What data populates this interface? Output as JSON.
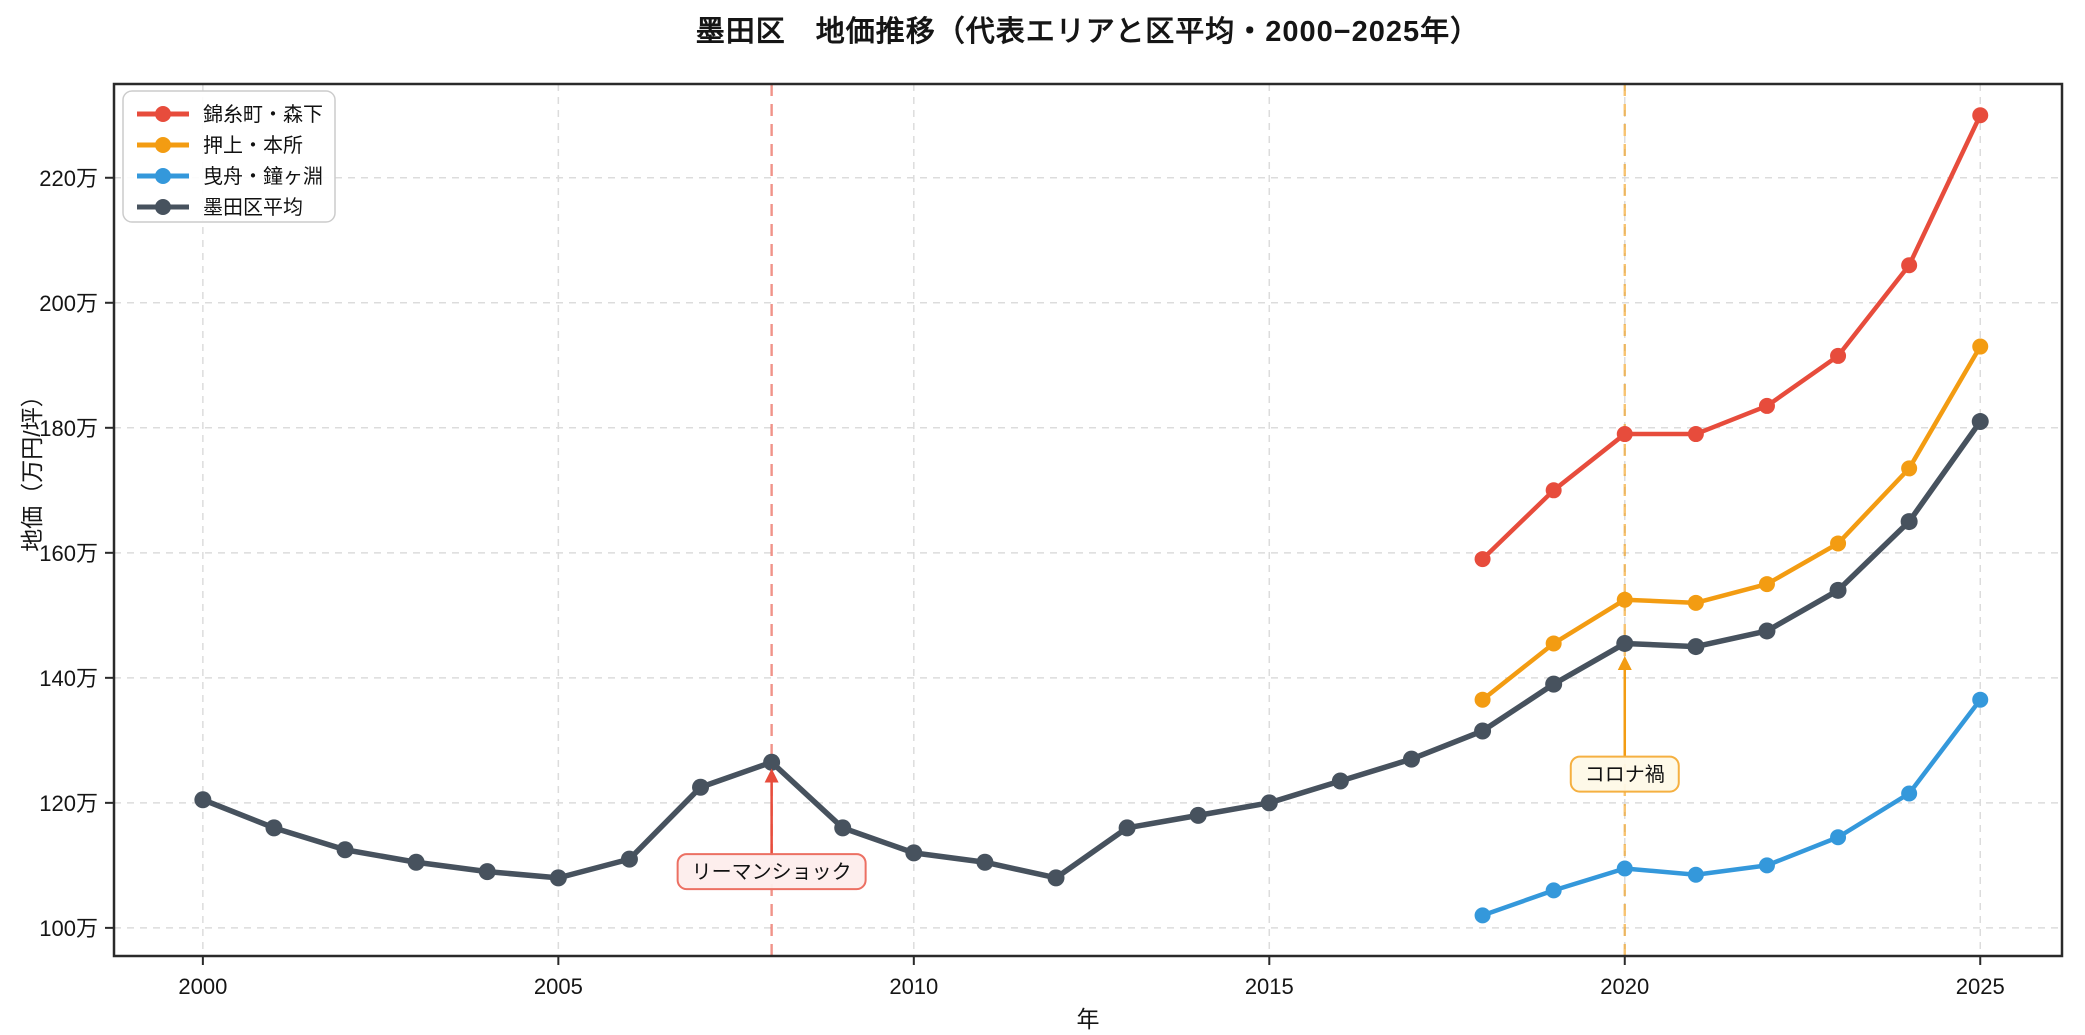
{
  "title": "墨田区　地価推移（代表エリアと区平均・2000−2025年）",
  "chart_data": {
    "type": "line",
    "title": "墨田区　地価推移（代表エリアと区平均・2000−2025年）",
    "xlabel": "年",
    "ylabel": "地価（万円/坪）",
    "x_ticks": [
      2000,
      2005,
      2010,
      2015,
      2020,
      2025
    ],
    "y_ticks": [
      100,
      120,
      140,
      160,
      180,
      200,
      220
    ],
    "y_tick_suffix": "万",
    "xlim": [
      1998.75,
      2026.15
    ],
    "ylim": [
      95.5,
      235
    ],
    "grid": true,
    "legend_position": "upper left",
    "series": [
      {
        "name": "錦糸町・森下",
        "color": "#e74c3c",
        "x": [
          2018,
          2019,
          2020,
          2021,
          2022,
          2023,
          2024,
          2025
        ],
        "values": [
          159,
          170,
          179,
          179,
          183.5,
          191.5,
          206,
          230
        ]
      },
      {
        "name": "押上・本所",
        "color": "#f39c12",
        "x": [
          2018,
          2019,
          2020,
          2021,
          2022,
          2023,
          2024,
          2025
        ],
        "values": [
          136.5,
          145.5,
          152.5,
          152,
          155,
          161.5,
          173.5,
          193
        ]
      },
      {
        "name": "曳舟・鐘ヶ淵",
        "color": "#3498db",
        "x": [
          2018,
          2019,
          2020,
          2021,
          2022,
          2023,
          2024,
          2025
        ],
        "values": [
          102,
          106,
          109.5,
          108.5,
          110,
          114.5,
          121.5,
          136.5
        ]
      },
      {
        "name": "墨田区平均",
        "color": "#47525e",
        "x": [
          2000,
          2001,
          2002,
          2003,
          2004,
          2005,
          2006,
          2007,
          2008,
          2009,
          2010,
          2011,
          2012,
          2013,
          2014,
          2015,
          2016,
          2017,
          2018,
          2019,
          2020,
          2021,
          2022,
          2023,
          2024,
          2025
        ],
        "values": [
          120.5,
          116,
          112.5,
          110.5,
          109,
          108,
          111,
          122.5,
          126.5,
          116,
          112,
          110.5,
          108,
          116,
          118,
          120,
          123.5,
          127,
          131.5,
          139,
          145.5,
          145,
          147.5,
          154,
          165,
          181
        ]
      }
    ],
    "annotations": [
      {
        "label": "リーマンショック",
        "year": 2008,
        "points_to_value": 125.5,
        "box_center_value": 109,
        "line_color": "#e74c3c",
        "box_fill": "#fdedec",
        "box_border": "#ec7063"
      },
      {
        "label": "コロナ禍",
        "year": 2020,
        "points_to_value": 143.5,
        "box_center_value": 124.6,
        "line_color": "#f39c12",
        "box_fill": "#fef9e7",
        "box_border": "#f5b041"
      }
    ]
  }
}
